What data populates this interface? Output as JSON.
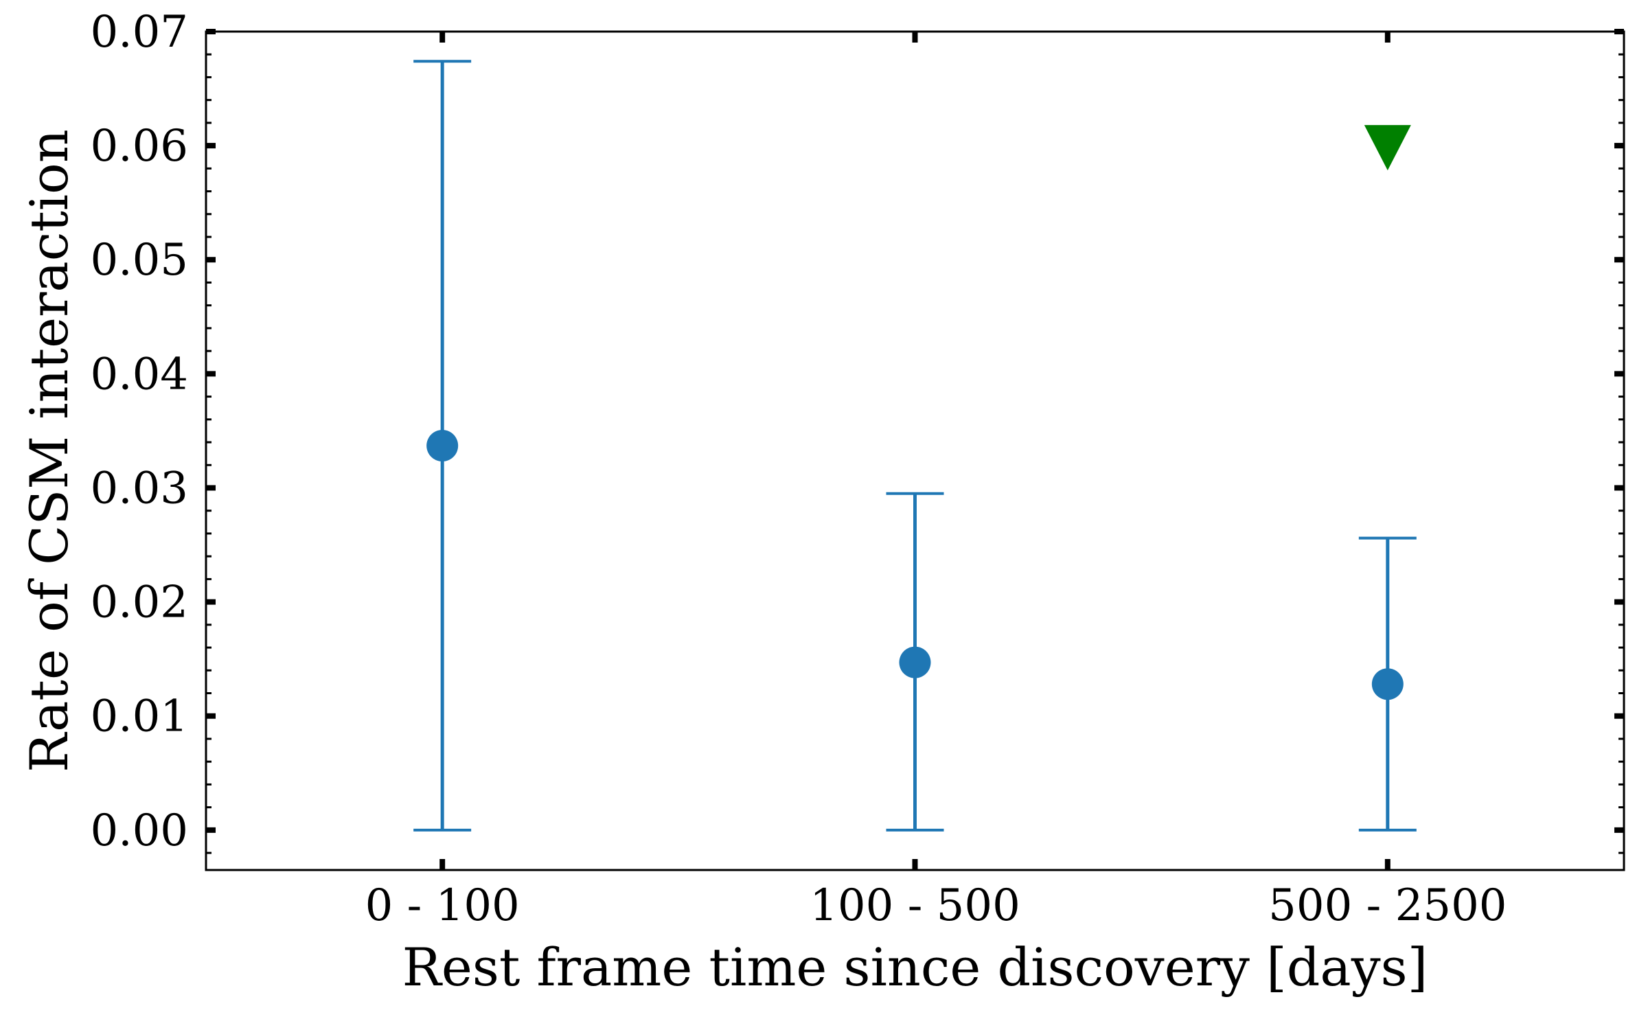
{
  "chart_data": {
    "type": "scatter",
    "categories": [
      "0 - 100",
      "100 - 500",
      "500 - 2500"
    ],
    "xlabel": "Rest frame time since discovery [days]",
    "ylabel": "Rate of CSM interaction",
    "ylim": [
      -0.0035,
      0.07
    ],
    "yticks": [
      "0.00",
      "0.01",
      "0.02",
      "0.03",
      "0.04",
      "0.05",
      "0.06",
      "0.07"
    ],
    "grid": false,
    "series": [
      {
        "marker": "circle",
        "color": "#1f77b4",
        "values": [
          0.0337,
          0.0147,
          0.0128
        ],
        "err_low": [
          0.0,
          0.0,
          0.0
        ],
        "err_high": [
          0.0674,
          0.0295,
          0.0256
        ]
      },
      {
        "marker": "triangle-down",
        "color": "#008000",
        "upper_limit": true,
        "categories": [
          "500 - 2500"
        ],
        "values": [
          0.06
        ]
      }
    ]
  }
}
